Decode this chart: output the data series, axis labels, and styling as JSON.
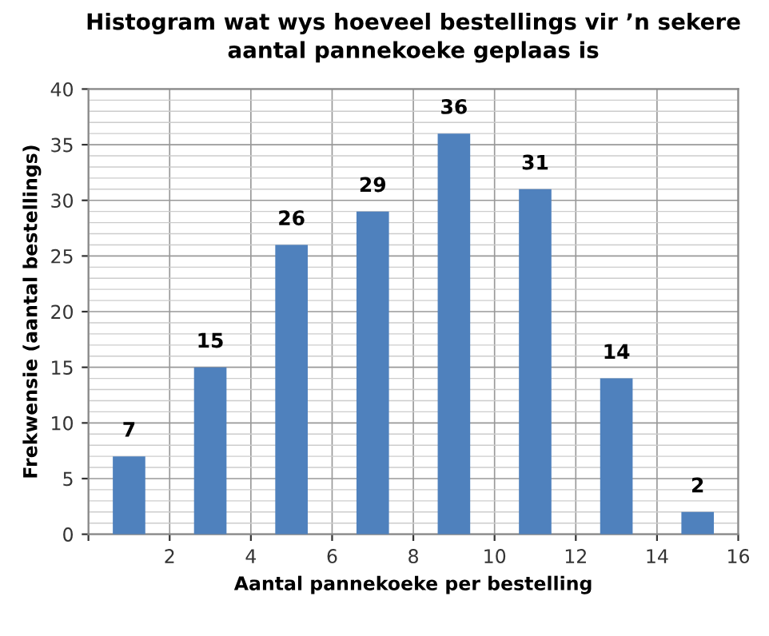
{
  "chart_data": {
    "type": "bar",
    "title": "Histogram wat wys hoeveel bestellings vir ’n sekere\naantal pannekoeke geplaas is",
    "xlabel": "Aantal pannekoeke per bestelling",
    "ylabel": "Frekwensie (aantal bestellings)",
    "x": [
      1,
      3,
      5,
      7,
      9,
      11,
      13,
      15
    ],
    "values": [
      7,
      15,
      26,
      29,
      36,
      31,
      14,
      2
    ],
    "color": "#4f81bd",
    "data_labels": true,
    "xlim": [
      0,
      16
    ],
    "xticks": [
      {
        "value": 0,
        "label": null
      },
      2,
      4,
      6,
      8,
      10,
      12,
      14,
      16
    ],
    "ylim": [
      0,
      40
    ],
    "yticks": [
      0,
      {
        "value": 1,
        "label": null
      },
      {
        "value": 2,
        "label": null
      },
      {
        "value": 3,
        "label": null
      },
      {
        "value": 4,
        "label": null
      },
      5,
      {
        "value": 6,
        "label": null
      },
      {
        "value": 7,
        "label": null
      },
      {
        "value": 8,
        "label": null
      },
      {
        "value": 9,
        "label": null
      },
      10,
      {
        "value": 11,
        "label": null
      },
      {
        "value": 12,
        "label": null
      },
      {
        "value": 13,
        "label": null
      },
      {
        "value": 14,
        "label": null
      },
      15,
      {
        "value": 16,
        "label": null
      },
      {
        "value": 17,
        "label": null
      },
      {
        "value": 18,
        "label": null
      },
      {
        "value": 19,
        "label": null
      },
      20,
      {
        "value": 21,
        "label": null
      },
      {
        "value": 22,
        "label": null
      },
      {
        "value": 23,
        "label": null
      },
      {
        "value": 24,
        "label": null
      },
      25,
      {
        "value": 26,
        "label": null
      },
      {
        "value": 27,
        "label": null
      },
      {
        "value": 28,
        "label": null
      },
      {
        "value": 29,
        "label": null
      },
      30,
      {
        "value": 31,
        "label": null
      },
      {
        "value": 32,
        "label": null
      },
      {
        "value": 33,
        "label": null
      },
      {
        "value": 34,
        "label": null
      },
      35,
      {
        "value": 36,
        "label": null
      },
      {
        "value": 37,
        "label": null
      },
      {
        "value": 38,
        "label": null
      },
      {
        "value": 39,
        "label": null
      },
      40
    ],
    "grid": true
  }
}
